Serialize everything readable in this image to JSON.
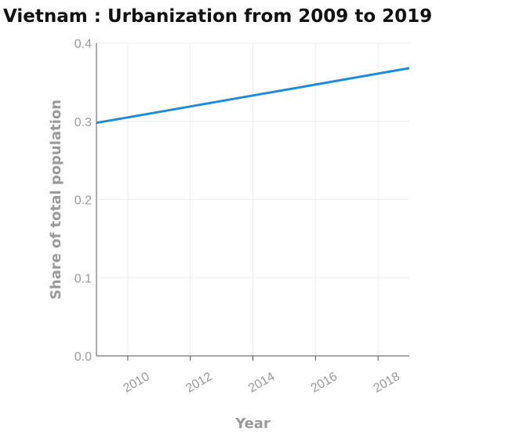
{
  "chart_data": {
    "type": "line",
    "title": "Vietnam : Urbanization from 2009 to 2019",
    "xlabel": "Year",
    "ylabel": "Share of total population",
    "xlim": [
      2009,
      2019
    ],
    "ylim": [
      0,
      0.4
    ],
    "x_ticks": [
      "2010",
      "2012",
      "2014",
      "2016",
      "2018"
    ],
    "y_ticks": [
      "0.0",
      "0.1",
      "0.2",
      "0.3",
      "0.4"
    ],
    "grid": true,
    "series": [
      {
        "color": "#1f8dd6",
        "x": [
          2009,
          2010,
          2011,
          2012,
          2013,
          2014,
          2015,
          2016,
          2017,
          2018,
          2019
        ],
        "values": [
          0.298,
          0.305,
          0.312,
          0.319,
          0.326,
          0.333,
          0.34,
          0.347,
          0.354,
          0.361,
          0.368
        ]
      }
    ]
  }
}
